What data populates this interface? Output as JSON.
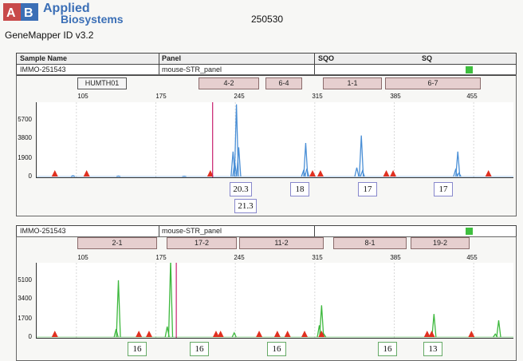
{
  "header": {
    "logo_initials": "AB",
    "brand_line1": "Applied",
    "brand_line2": "Biosystems",
    "software": "GeneMapper ID v3.2",
    "run_id": "250530"
  },
  "table_header": {
    "sample_name": "Sample Name",
    "panel": "Panel",
    "sqo": "SQO",
    "sq": "SQ"
  },
  "colors": {
    "blue_trace": "#4a8fd6",
    "green_trace": "#3db83d",
    "red_marker": "#e03020",
    "magenta_line": "#c8206e",
    "quality_ok": "#3fbf3f"
  },
  "panel1": {
    "sample": "IMMO-251543",
    "panel": "mouse-STR_panel",
    "markers": [
      "HUMTH01",
      "4-2",
      "6-4",
      "1-1",
      "6-7"
    ],
    "x_ticks": [
      "105",
      "175",
      "245",
      "315",
      "385",
      "455"
    ],
    "y_ticks": [
      "5700",
      "3800",
      "1900",
      "0"
    ],
    "alleles": [
      "20.3",
      "21.3",
      "18",
      "17",
      "17"
    ]
  },
  "panel2": {
    "sample": "IMMO-251543",
    "panel": "mouse-STR_panel",
    "markers": [
      "2-1",
      "17-2",
      "11-2",
      "8-1",
      "19-2"
    ],
    "x_ticks": [
      "105",
      "175",
      "245",
      "315",
      "385",
      "455"
    ],
    "y_ticks": [
      "5100",
      "3400",
      "1700",
      "0"
    ],
    "alleles": [
      "16",
      "16",
      "16",
      "16",
      "13"
    ]
  },
  "chart_data": [
    {
      "type": "line",
      "title": "",
      "xlabel": "",
      "ylabel": "",
      "xlim": [
        70,
        490
      ],
      "ylim": [
        0,
        7000
      ],
      "series": [
        {
          "x": [
            102,
            142,
            200,
            243,
            244.5,
            246,
            248,
            305,
            307,
            308,
            352,
            356,
            357,
            439,
            441,
            442
          ],
          "values": [
            150,
            120,
            100,
            2400,
            1400,
            6800,
            2800,
            600,
            3200,
            800,
            900,
            3900,
            600,
            700,
            2400,
            400
          ]
        }
      ],
      "peak_labels": [
        "20.3",
        "21.3",
        "18",
        "17",
        "17"
      ]
    },
    {
      "type": "line",
      "title": "",
      "xlabel": "",
      "ylabel": "",
      "xlim": [
        70,
        490
      ],
      "ylim": [
        0,
        6000
      ],
      "series": [
        {
          "x": [
            140,
            142,
            185,
            188,
            244,
            319,
            321,
            323,
            418,
            420,
            474,
            477
          ],
          "values": [
            700,
            4600,
            900,
            6200,
            400,
            1000,
            2600,
            300,
            400,
            1900,
            300,
            1400
          ]
        }
      ],
      "peak_labels": [
        "16",
        "16",
        "16",
        "16",
        "13"
      ]
    }
  ]
}
